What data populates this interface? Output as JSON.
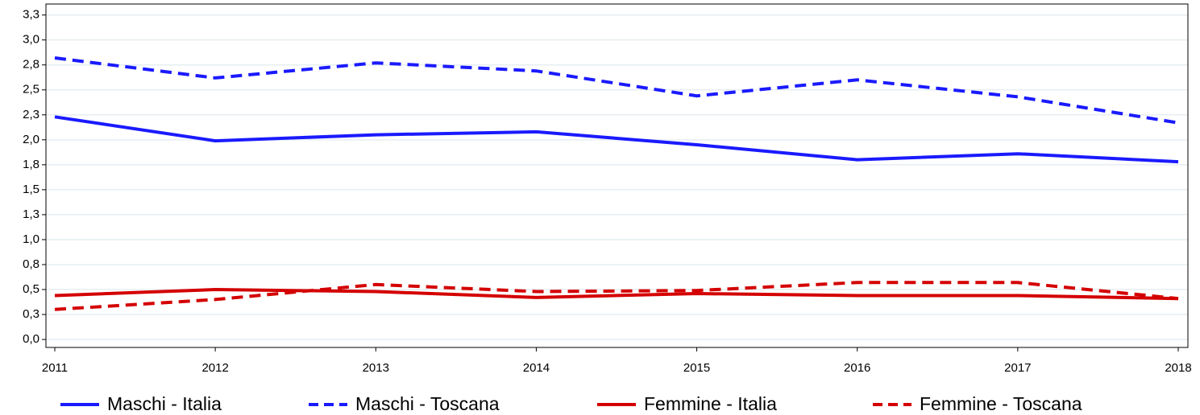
{
  "chart_data": {
    "type": "line",
    "categories": [
      "2011",
      "2012",
      "2013",
      "2014",
      "2015",
      "2016",
      "2017",
      "2018"
    ],
    "series": [
      {
        "name": "Maschi - Italia",
        "color": "#1a1aff",
        "line_style": "solid",
        "values": [
          2.23,
          1.99,
          2.05,
          2.08,
          1.95,
          1.8,
          1.86,
          1.78
        ]
      },
      {
        "name": "Maschi - Toscana",
        "color": "#1a1aff",
        "line_style": "dashed",
        "values": [
          2.82,
          2.62,
          2.77,
          2.69,
          2.44,
          2.6,
          2.43,
          2.17
        ]
      },
      {
        "name": "Femmine - Italia",
        "color": "#d40000",
        "line_style": "solid",
        "values": [
          0.44,
          0.5,
          0.48,
          0.42,
          0.46,
          0.44,
          0.44,
          0.41
        ]
      },
      {
        "name": "Femmine - Toscana",
        "color": "#d40000",
        "line_style": "dashed",
        "values": [
          0.3,
          0.4,
          0.55,
          0.48,
          0.49,
          0.57,
          0.57,
          0.41
        ]
      }
    ],
    "ylim": [
      -0.08,
      3.36
    ],
    "yticks": [
      {
        "value": 0,
        "label": "0,0"
      },
      {
        "value": 0.25,
        "label": "0,3"
      },
      {
        "value": 0.5,
        "label": "0,5"
      },
      {
        "value": 0.75,
        "label": "0,8"
      },
      {
        "value": 1,
        "label": "1,0"
      },
      {
        "value": 1.25,
        "label": "1,3"
      },
      {
        "value": 1.5,
        "label": "1,5"
      },
      {
        "value": 1.75,
        "label": "1,8"
      },
      {
        "value": 2,
        "label": "2,0"
      },
      {
        "value": 2.25,
        "label": "2,3"
      },
      {
        "value": 2.5,
        "label": "2,5"
      },
      {
        "value": 2.75,
        "label": "2,8"
      },
      {
        "value": 3,
        "label": "3,0"
      },
      {
        "value": 3.25,
        "label": "3,3"
      }
    ],
    "grid": true
  }
}
